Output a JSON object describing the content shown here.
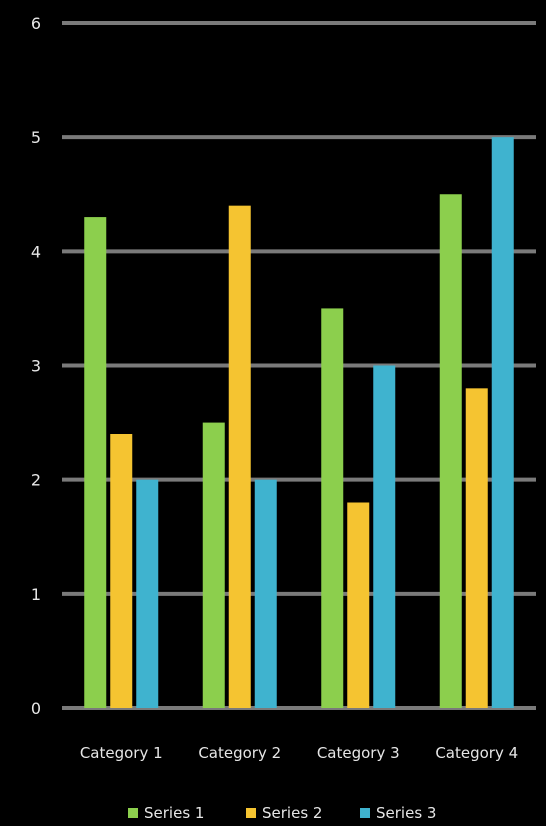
{
  "chart_data": {
    "type": "bar",
    "title": "",
    "xlabel": "",
    "ylabel": "",
    "categories": [
      "Category 1",
      "Category 2",
      "Category 3",
      "Category 4"
    ],
    "series": [
      {
        "name": "Series 1",
        "values": [
          4.3,
          2.5,
          3.5,
          4.5
        ],
        "color": "#8ccf4d"
      },
      {
        "name": "Series 2",
        "values": [
          2.4,
          4.4,
          1.8,
          2.8
        ],
        "color": "#f5c431"
      },
      {
        "name": "Series 3",
        "values": [
          2.0,
          2.0,
          3.0,
          5.0
        ],
        "color": "#3fb3cf"
      }
    ],
    "ylim": [
      0,
      6
    ],
    "yticks": [
      0,
      1,
      2,
      3,
      4,
      5,
      6
    ],
    "grid": true,
    "legend": "bottom",
    "colors": {
      "background": "#000000",
      "gridline": "#7a7a7a",
      "text": "#e6e6e6"
    }
  }
}
